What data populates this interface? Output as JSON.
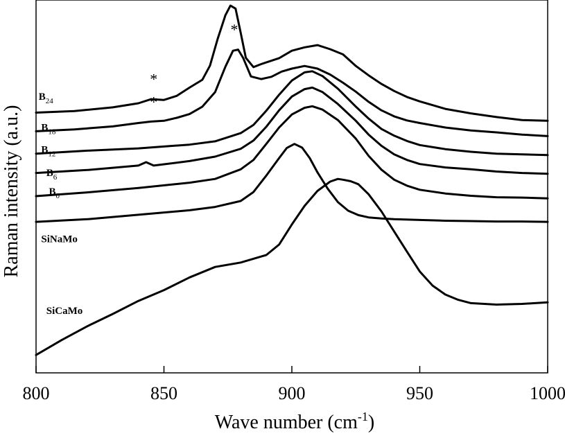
{
  "chart_data": {
    "type": "line",
    "title": "",
    "xlabel": {
      "main": "Wave number (cm",
      "sup": "-1",
      "end": ")"
    },
    "ylabel": "Raman intensity (a.u.)",
    "xlim": [
      800,
      1000
    ],
    "xticks": [
      800,
      850,
      900,
      950,
      1000
    ],
    "xtick_labels": [
      "800",
      "850",
      "900",
      "950",
      "1000"
    ],
    "y_axis_ticks_shown": false,
    "grid": false,
    "ylim": [
      0,
      100
    ],
    "series": [
      {
        "name": "B24",
        "label_main": "B",
        "label_sub": "24",
        "x": [
          800,
          815,
          830,
          840,
          845,
          850,
          855,
          860,
          865,
          868,
          871,
          874,
          876,
          878,
          880,
          882,
          885,
          888,
          891,
          895,
          900,
          905,
          910,
          915,
          920,
          925,
          930,
          935,
          940,
          945,
          950,
          960,
          970,
          980,
          990,
          1000
        ],
        "y": [
          69.8,
          70.2,
          71.2,
          72.3,
          73.4,
          73.2,
          74.3,
          76.5,
          78.6,
          82.4,
          89.6,
          95.9,
          98.5,
          97.7,
          91.2,
          84.5,
          82.0,
          82.8,
          83.5,
          84.4,
          86.4,
          87.3,
          87.9,
          86.8,
          85.4,
          82.3,
          79.8,
          77.5,
          75.6,
          74.0,
          72.8,
          70.8,
          69.6,
          68.6,
          67.8,
          67.6
        ]
      },
      {
        "name": "B18",
        "label_main": "B",
        "label_sub": "18",
        "x": [
          800,
          815,
          830,
          840,
          845,
          850,
          855,
          860,
          865,
          870,
          874,
          877,
          879,
          881,
          884,
          888,
          892,
          896,
          900,
          905,
          910,
          915,
          920,
          925,
          930,
          935,
          940,
          945,
          950,
          960,
          970,
          980,
          990,
          1000
        ],
        "y": [
          64.8,
          65.3,
          66.1,
          67.0,
          67.4,
          67.6,
          68.4,
          69.4,
          71.4,
          75.3,
          82.1,
          86.4,
          86.7,
          84.4,
          79.5,
          78.8,
          79.4,
          80.8,
          81.6,
          82.3,
          81.6,
          80.0,
          77.8,
          75.4,
          72.7,
          70.4,
          68.8,
          67.7,
          67.0,
          65.8,
          65.0,
          64.5,
          63.9,
          63.5
        ]
      },
      {
        "name": "B12",
        "label_main": "B",
        "label_sub": "12",
        "x": [
          800,
          820,
          840,
          860,
          870,
          880,
          885,
          890,
          895,
          900,
          905,
          908,
          912,
          918,
          925,
          930,
          935,
          940,
          945,
          950,
          960,
          970,
          980,
          990,
          1000
        ],
        "y": [
          58.8,
          59.6,
          60.2,
          61.2,
          62.1,
          64.3,
          66.5,
          70.3,
          74.6,
          78.4,
          80.6,
          80.9,
          79.6,
          76.2,
          71.4,
          68.2,
          65.4,
          63.6,
          62.2,
          61.1,
          60.0,
          59.3,
          58.8,
          58.6,
          58.4
        ]
      },
      {
        "name": "B6",
        "label_main": "B",
        "label_sub": "6",
        "x": [
          800,
          820,
          840,
          843,
          846,
          860,
          870,
          880,
          885,
          890,
          895,
          900,
          905,
          908,
          912,
          918,
          925,
          930,
          935,
          940,
          945,
          950,
          960,
          970,
          980,
          990,
          1000
        ],
        "y": [
          53.6,
          54.4,
          55.6,
          56.5,
          55.6,
          56.8,
          58.0,
          60.1,
          62.3,
          66.0,
          70.4,
          74.1,
          76.1,
          76.5,
          75.3,
          72.1,
          67.6,
          63.9,
          60.9,
          58.6,
          57.1,
          56.0,
          55.1,
          54.6,
          54.0,
          53.6,
          53.4
        ]
      },
      {
        "name": "B0",
        "label_main": "B",
        "label_sub": "0",
        "x": [
          800,
          820,
          840,
          860,
          870,
          880,
          885,
          890,
          895,
          900,
          905,
          908,
          912,
          918,
          925,
          930,
          935,
          940,
          945,
          950,
          960,
          970,
          980,
          990,
          1000
        ],
        "y": [
          47.4,
          48.4,
          49.6,
          51.0,
          52.0,
          54.6,
          57.1,
          61.4,
          65.8,
          69.3,
          71.1,
          71.5,
          70.6,
          67.8,
          62.8,
          58.2,
          54.5,
          51.8,
          50.2,
          49.1,
          48.1,
          47.5,
          47.1,
          47.0,
          46.8
        ]
      },
      {
        "name": "SiNaMo",
        "label_main": "SiNaMo",
        "label_sub": "",
        "x": [
          800,
          820,
          840,
          860,
          870,
          880,
          885,
          890,
          895,
          898,
          901,
          904,
          907,
          910,
          914,
          918,
          922,
          926,
          930,
          935,
          940,
          950,
          960,
          970,
          980,
          990,
          1000
        ],
        "y": [
          40.5,
          41.2,
          42.4,
          43.6,
          44.5,
          46.1,
          48.5,
          52.9,
          57.6,
          60.3,
          61.4,
          60.4,
          57.6,
          53.8,
          49.4,
          45.8,
          43.5,
          42.3,
          41.7,
          41.4,
          41.2,
          41.0,
          40.8,
          40.7,
          40.6,
          40.6,
          40.5
        ]
      },
      {
        "name": "SiCaMo",
        "label_main": "SiCaMo",
        "label_sub": "",
        "x": [
          800,
          810,
          820,
          830,
          840,
          850,
          860,
          870,
          880,
          890,
          895,
          900,
          905,
          910,
          915,
          918,
          920,
          923,
          926,
          930,
          935,
          940,
          945,
          950,
          955,
          960,
          965,
          970,
          980,
          990,
          1000
        ],
        "y": [
          4.8,
          8.8,
          12.5,
          15.8,
          19.3,
          22.2,
          25.6,
          28.4,
          29.6,
          31.6,
          34.4,
          39.8,
          44.8,
          48.8,
          51.3,
          52.0,
          51.8,
          51.4,
          50.6,
          47.9,
          43.3,
          37.9,
          32.5,
          27.2,
          23.4,
          21.0,
          19.6,
          18.7,
          18.3,
          18.5,
          18.9
        ]
      }
    ],
    "annotations": [
      {
        "text": "*",
        "x": 876,
        "y": 102.6
      },
      {
        "text": "*",
        "x": 877.5,
        "y": 90.7
      },
      {
        "text": "*",
        "x": 846,
        "y": 77.4
      },
      {
        "text": "*",
        "x": 846,
        "y": 71.3
      }
    ],
    "series_label_positions": {
      "B24": [
        801,
        73.2
      ],
      "B18": [
        802,
        65.0
      ],
      "B12": [
        802,
        59.0
      ],
      "B6": [
        804,
        52.8
      ],
      "B0": [
        805,
        47.8
      ],
      "SiNaMo": [
        802,
        35.0
      ],
      "SiCaMo": [
        804,
        15.8
      ]
    }
  }
}
